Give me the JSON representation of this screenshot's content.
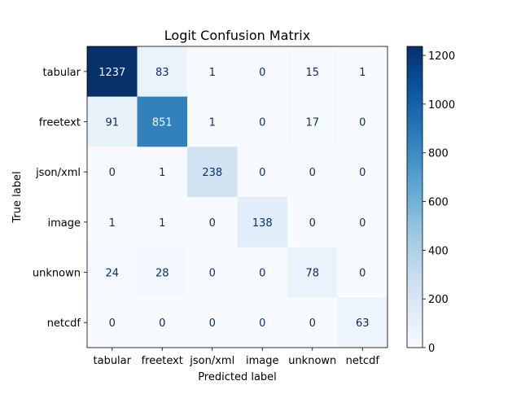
{
  "chart_data": {
    "type": "heatmap",
    "title": "Logit Confusion Matrix",
    "xlabel": "Predicted label",
    "ylabel": "True label",
    "x_categories": [
      "tabular",
      "freetext",
      "json/xml",
      "image",
      "unknown",
      "netcdf"
    ],
    "y_categories": [
      "tabular",
      "freetext",
      "json/xml",
      "image",
      "unknown",
      "netcdf"
    ],
    "values": [
      [
        1237,
        83,
        1,
        0,
        15,
        1
      ],
      [
        91,
        851,
        1,
        0,
        17,
        0
      ],
      [
        0,
        1,
        238,
        0,
        0,
        0
      ],
      [
        1,
        1,
        0,
        138,
        0,
        0
      ],
      [
        24,
        28,
        0,
        0,
        78,
        0
      ],
      [
        0,
        0,
        0,
        0,
        0,
        63
      ]
    ],
    "colormap": "Blues",
    "colorbar": {
      "min": 0,
      "max": 1237,
      "ticks": [
        0,
        200,
        400,
        600,
        800,
        1000,
        1200
      ]
    }
  }
}
